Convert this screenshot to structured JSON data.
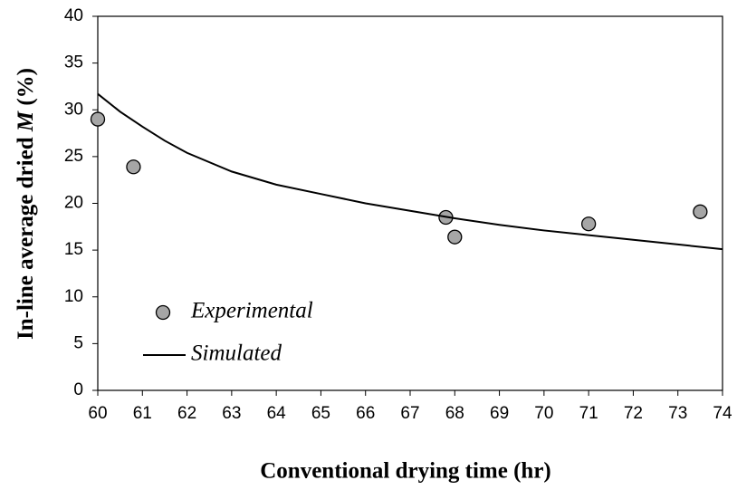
{
  "chart_data": {
    "type": "scatter",
    "xlabel": "Conventional drying time (hr)",
    "ylabel": {
      "text": "In-line average dried",
      "italic": "M",
      "unit": "(%)"
    },
    "xlim": [
      60,
      74
    ],
    "xticks": [
      60,
      61,
      62,
      63,
      64,
      65,
      66,
      67,
      68,
      69,
      70,
      71,
      72,
      73,
      74
    ],
    "ylim": [
      0,
      40
    ],
    "yticks": [
      0,
      5,
      10,
      15,
      20,
      25,
      30,
      35,
      40
    ],
    "grid": false,
    "legend": "lower left",
    "series": [
      {
        "name": "Experimental",
        "type": "scatter",
        "color": "#a6a6a6",
        "x": [
          60,
          60.8,
          67.8,
          68,
          71,
          73.5
        ],
        "values": [
          29,
          23.9,
          18.5,
          16.4,
          17.8,
          19.1
        ]
      },
      {
        "name": "Simulated",
        "type": "line",
        "color": "#000000",
        "x": [
          60,
          60.5,
          61,
          61.5,
          62,
          63,
          64,
          65,
          66,
          67,
          68,
          69,
          70,
          71,
          72,
          73,
          74
        ],
        "values": [
          31.7,
          29.8,
          28.2,
          26.7,
          25.4,
          23.4,
          22,
          21,
          20,
          19.2,
          18.4,
          17.7,
          17.1,
          16.6,
          16.1,
          15.6,
          15.1
        ]
      }
    ]
  }
}
